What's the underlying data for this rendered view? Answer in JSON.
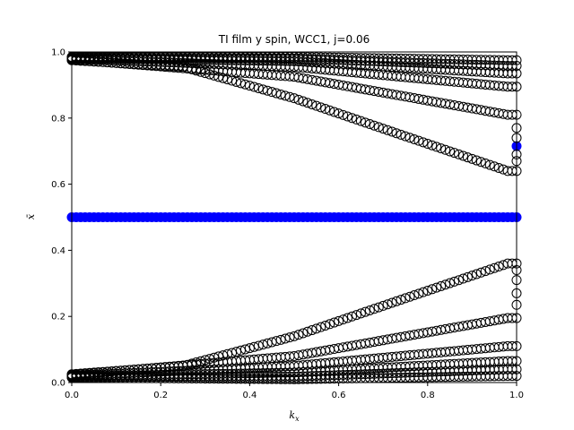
{
  "chart_data": {
    "type": "scatter",
    "title": "TI film y spin, WCC1, j=0.06",
    "xlabel": "k_x",
    "ylabel": "x̄",
    "xlim": [
      0.0,
      1.0
    ],
    "ylim": [
      0.0,
      1.0
    ],
    "xticks": [
      "0.0",
      "0.2",
      "0.4",
      "0.6",
      "0.8",
      "1.0"
    ],
    "yticks": [
      "0.0",
      "0.2",
      "0.4",
      "0.6",
      "0.8",
      "1.0"
    ],
    "grid": false,
    "legend": "none",
    "marker": "open-circle",
    "x_range": {
      "start": 0.0,
      "end": 1.0,
      "count": 101
    },
    "series": [
      {
        "color": "#000000",
        "edge_values": [
          [
            0.0,
            0.975
          ],
          [
            0.25,
            0.955
          ],
          [
            0.5,
            0.86
          ],
          [
            0.75,
            0.745
          ],
          [
            0.98,
            0.64
          ]
        ]
      },
      {
        "color": "#000000",
        "edge_values": [
          [
            0.0,
            0.977
          ],
          [
            0.5,
            0.925
          ],
          [
            0.98,
            0.81
          ]
        ]
      },
      {
        "color": "#000000",
        "edge_values": [
          [
            0.0,
            0.979
          ],
          [
            0.5,
            0.955
          ],
          [
            0.98,
            0.895
          ]
        ]
      },
      {
        "color": "#000000",
        "edge_values": [
          [
            0.0,
            0.981
          ],
          [
            0.5,
            0.972
          ],
          [
            0.98,
            0.935
          ]
        ]
      },
      {
        "color": "#000000",
        "edge_values": [
          [
            0.0,
            0.983
          ],
          [
            0.5,
            0.98
          ],
          [
            0.98,
            0.958
          ]
        ]
      },
      {
        "color": "#000000",
        "edge_values": [
          [
            0.0,
            0.985
          ],
          [
            0.5,
            0.985
          ],
          [
            0.98,
            0.975
          ]
        ]
      },
      {
        "color": "#000000",
        "edge_values": [
          [
            0.0,
            0.025
          ],
          [
            0.25,
            0.05
          ],
          [
            0.5,
            0.14
          ],
          [
            0.75,
            0.255
          ],
          [
            0.98,
            0.36
          ]
        ]
      },
      {
        "color": "#000000",
        "edge_values": [
          [
            0.0,
            0.023
          ],
          [
            0.5,
            0.08
          ],
          [
            0.98,
            0.195
          ]
        ]
      },
      {
        "color": "#000000",
        "edge_values": [
          [
            0.0,
            0.021
          ],
          [
            0.5,
            0.05
          ],
          [
            0.98,
            0.11
          ]
        ]
      },
      {
        "color": "#000000",
        "edge_values": [
          [
            0.0,
            0.019
          ],
          [
            0.5,
            0.03
          ],
          [
            0.98,
            0.065
          ]
        ]
      },
      {
        "color": "#000000",
        "edge_values": [
          [
            0.0,
            0.017
          ],
          [
            0.5,
            0.018
          ],
          [
            0.98,
            0.04
          ]
        ]
      },
      {
        "color": "#000000",
        "edge_values": [
          [
            0.0,
            0.015
          ],
          [
            0.5,
            0.01
          ],
          [
            0.98,
            0.02
          ]
        ]
      },
      {
        "color": "#0000ff",
        "filled": true,
        "edge_values": [
          [
            0.0,
            0.5
          ],
          [
            1.0,
            0.5
          ]
        ]
      }
    ],
    "edge_points": [
      {
        "x": 1.0,
        "y": 0.715,
        "color": "#0000ff",
        "filled": true
      },
      {
        "x": 1.0,
        "y": 0.77,
        "color": "#000000"
      },
      {
        "x": 1.0,
        "y": 0.74,
        "color": "#000000"
      },
      {
        "x": 1.0,
        "y": 0.69,
        "color": "#000000"
      },
      {
        "x": 1.0,
        "y": 0.67,
        "color": "#000000"
      },
      {
        "x": 1.0,
        "y": 0.235,
        "color": "#000000"
      },
      {
        "x": 1.0,
        "y": 0.27,
        "color": "#000000"
      },
      {
        "x": 1.0,
        "y": 0.31,
        "color": "#000000"
      },
      {
        "x": 1.0,
        "y": 0.34,
        "color": "#000000"
      }
    ]
  }
}
